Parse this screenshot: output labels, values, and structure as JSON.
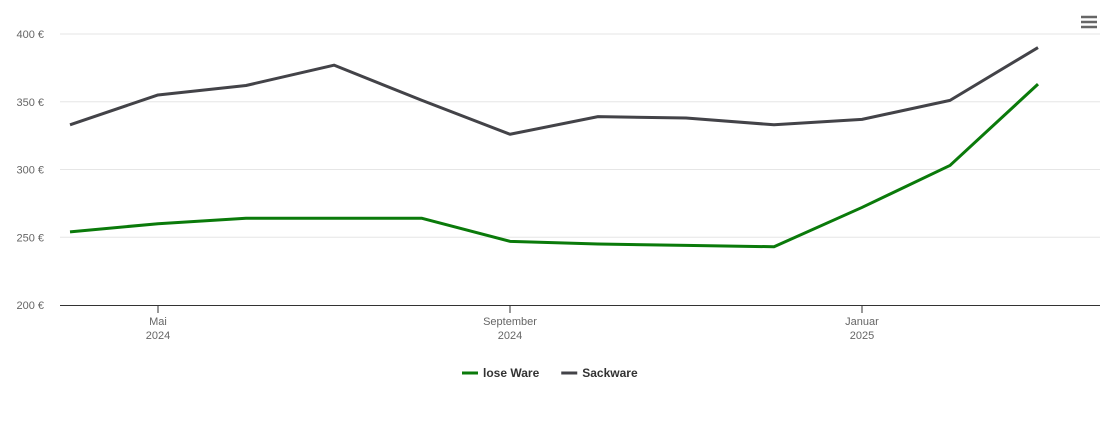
{
  "chart_data": {
    "type": "line",
    "x": [
      "2024-04",
      "2024-05",
      "2024-06",
      "2024-07",
      "2024-08",
      "2024-09",
      "2024-10",
      "2024-11",
      "2024-12",
      "2025-01",
      "2025-02",
      "2025-03"
    ],
    "series": [
      {
        "name": "lose Ware",
        "color": "#0a7a0a",
        "values": [
          254,
          260,
          264,
          264,
          264,
          247,
          245,
          244,
          243,
          272,
          303,
          363
        ]
      },
      {
        "name": "Sackware",
        "color": "#434348",
        "values": [
          333,
          355,
          362,
          377,
          351,
          326,
          339,
          338,
          333,
          337,
          351,
          390
        ]
      }
    ],
    "xticks": [
      {
        "value": "2024-05",
        "label": "Mai 2024"
      },
      {
        "value": "2024-09",
        "label": "September 2024"
      },
      {
        "value": "2025-01",
        "label": "Januar 2025"
      }
    ],
    "ylim": [
      200,
      400
    ],
    "yticks": [
      {
        "value": 200,
        "label": "200 €"
      },
      {
        "value": 250,
        "label": "250 €"
      },
      {
        "value": 300,
        "label": "300 €"
      },
      {
        "value": 350,
        "label": "350 €"
      },
      {
        "value": 400,
        "label": "400 €"
      }
    ],
    "grid": true,
    "legend": "bottom"
  }
}
